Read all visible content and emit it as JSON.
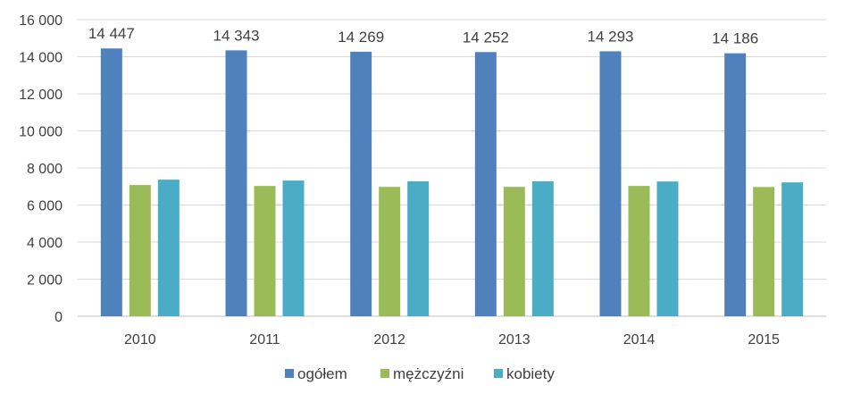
{
  "chart_data": {
    "type": "bar",
    "categories": [
      "2010",
      "2011",
      "2012",
      "2013",
      "2014",
      "2015"
    ],
    "series": [
      {
        "name": "ogółem",
        "color": "#4f81bd",
        "values": [
          14447,
          14343,
          14269,
          14252,
          14293,
          14186
        ],
        "value_labels": [
          "14 447",
          "14 343",
          "14 269",
          "14 252",
          "14 293",
          "14 186"
        ]
      },
      {
        "name": "mężczyźni",
        "color": "#9bbb59",
        "values": [
          7080,
          7030,
          6980,
          6980,
          7030,
          6970
        ]
      },
      {
        "name": "kobiety",
        "color": "#4bacc6",
        "values": [
          7370,
          7320,
          7280,
          7280,
          7270,
          7220
        ]
      }
    ],
    "yticks": [
      0,
      2000,
      4000,
      6000,
      8000,
      10000,
      12000,
      14000,
      16000
    ],
    "ytick_labels": [
      "0",
      "2 000",
      "4 000",
      "6 000",
      "8 000",
      "10 000",
      "12 000",
      "14 000",
      "16 000"
    ],
    "ylim": [
      0,
      16000
    ],
    "grid": true,
    "legend_position": "bottom",
    "title": "",
    "xlabel": "",
    "ylabel": ""
  }
}
